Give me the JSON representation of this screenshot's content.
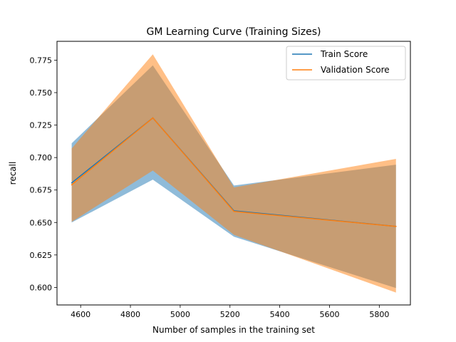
{
  "chart_data": {
    "type": "line",
    "title": "GM Learning Curve (Training Sizes)",
    "xlabel": "Number of samples in the training set",
    "ylabel": "recall",
    "xlim": [
      4505,
      5925
    ],
    "ylim": [
      0.5865,
      0.7895
    ],
    "xticks": [
      4600,
      4800,
      5000,
      5200,
      5400,
      5600,
      5800
    ],
    "yticks": [
      0.6,
      0.625,
      0.65,
      0.675,
      0.7,
      0.725,
      0.75,
      0.775
    ],
    "x": [
      4564,
      4890,
      5216,
      5867
    ],
    "grid": false,
    "legend": "top-right",
    "series": [
      {
        "name": "Train Score",
        "color": "#1f77b4",
        "values": [
          0.6805,
          0.7305,
          0.659,
          0.647
        ],
        "band_upper": [
          0.711,
          0.771,
          0.6785,
          0.6945
        ],
        "band_lower": [
          0.65,
          0.683,
          0.639,
          0.5995
        ]
      },
      {
        "name": "Validation Score",
        "color": "#ff7f0e",
        "values": [
          0.679,
          0.7305,
          0.6585,
          0.647
        ],
        "band_upper": [
          0.707,
          0.7795,
          0.677,
          0.699
        ],
        "band_lower": [
          0.6505,
          0.69,
          0.6405,
          0.596
        ]
      }
    ]
  }
}
